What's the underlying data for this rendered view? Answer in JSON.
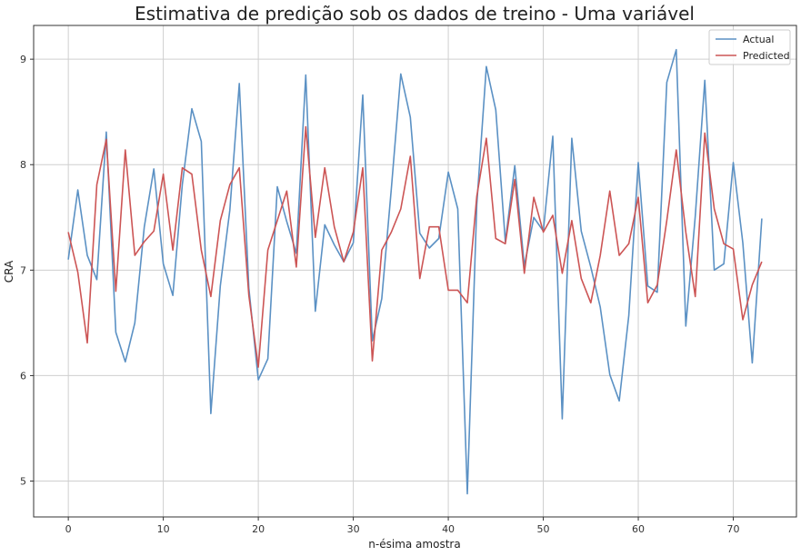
{
  "chart_data": {
    "type": "line",
    "title": "Estimativa de predição sob os dados de treino - Uma variável",
    "xlabel": "n-ésima amostra",
    "ylabel": "CRA",
    "xlim": [
      -3.65,
      76.65
    ],
    "ylim": [
      4.66,
      9.32
    ],
    "xticks": [
      0,
      10,
      20,
      30,
      40,
      50,
      60,
      70
    ],
    "yticks": [
      5,
      6,
      7,
      8,
      9
    ],
    "grid": true,
    "legend_position": "top-right",
    "x": [
      0,
      1,
      2,
      3,
      4,
      5,
      6,
      7,
      8,
      9,
      10,
      11,
      12,
      13,
      14,
      15,
      16,
      17,
      18,
      19,
      20,
      21,
      22,
      23,
      24,
      25,
      26,
      27,
      28,
      29,
      30,
      31,
      32,
      33,
      34,
      35,
      36,
      37,
      38,
      39,
      40,
      41,
      42,
      43,
      44,
      45,
      46,
      47,
      48,
      49,
      50,
      51,
      52,
      53,
      54,
      55,
      56,
      57,
      58,
      59,
      60,
      61,
      62,
      63,
      64,
      65,
      66,
      67,
      68,
      69,
      70,
      71,
      72,
      73
    ],
    "series": [
      {
        "name": "Actual",
        "color": "#5b91c4",
        "values": [
          7.1,
          7.76,
          7.14,
          6.91,
          8.31,
          6.41,
          6.13,
          6.5,
          7.41,
          7.96,
          7.06,
          6.76,
          7.81,
          8.53,
          8.22,
          5.64,
          6.85,
          7.57,
          8.77,
          6.83,
          5.96,
          6.16,
          7.79,
          7.46,
          7.16,
          8.85,
          6.61,
          7.43,
          7.24,
          7.08,
          7.26,
          8.66,
          6.33,
          6.73,
          7.77,
          8.86,
          8.45,
          7.35,
          7.21,
          7.3,
          7.93,
          7.58,
          4.88,
          7.62,
          8.93,
          8.52,
          7.27,
          7.99,
          7.04,
          7.5,
          7.37,
          8.27,
          5.59,
          8.25,
          7.37,
          7.03,
          6.65,
          6.01,
          5.76,
          6.57,
          8.02,
          6.85,
          6.79,
          8.78,
          9.09,
          6.47,
          7.51,
          8.8,
          7.0,
          7.06,
          8.02,
          7.26,
          6.12,
          7.49
        ]
      },
      {
        "name": "Predicted",
        "color": "#cc5555",
        "values": [
          7.36,
          6.98,
          6.31,
          7.81,
          8.24,
          6.8,
          8.14,
          7.14,
          7.27,
          7.37,
          7.91,
          7.19,
          7.97,
          7.91,
          7.19,
          6.75,
          7.47,
          7.81,
          7.97,
          6.76,
          6.08,
          7.19,
          7.47,
          7.75,
          7.03,
          8.36,
          7.31,
          7.97,
          7.41,
          7.08,
          7.36,
          7.97,
          6.14,
          7.19,
          7.36,
          7.58,
          8.08,
          6.92,
          7.41,
          7.41,
          6.81,
          6.81,
          6.69,
          7.7,
          8.25,
          7.3,
          7.25,
          7.86,
          6.97,
          7.69,
          7.36,
          7.52,
          6.97,
          7.47,
          6.92,
          6.69,
          7.14,
          7.75,
          7.14,
          7.25,
          7.69,
          6.69,
          6.86,
          7.47,
          8.14,
          7.36,
          6.75,
          8.3,
          7.58,
          7.25,
          7.2,
          6.53,
          6.86,
          7.08
        ]
      }
    ]
  }
}
